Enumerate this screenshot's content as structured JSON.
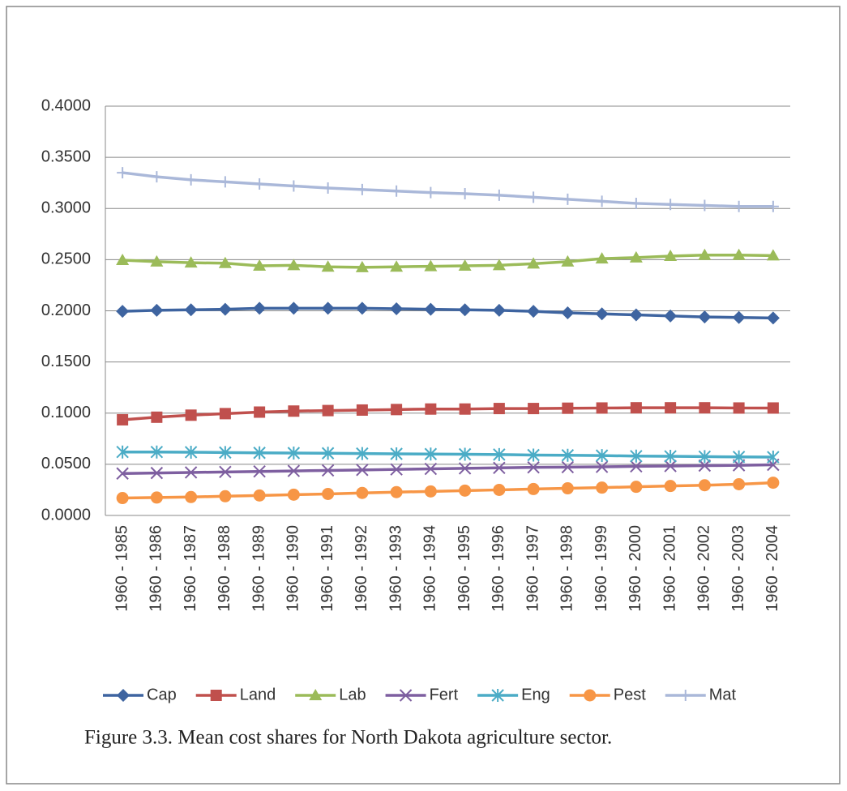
{
  "chart_data": {
    "type": "line",
    "caption": "Figure 3.3. Mean cost shares for North Dakota agriculture sector.",
    "categories": [
      "1960 - 1985",
      "1960 - 1986",
      "1960 - 1987",
      "1960 - 1988",
      "1960 - 1989",
      "1960 - 1990",
      "1960 - 1991",
      "1960 - 1992",
      "1960 - 1993",
      "1960 - 1994",
      "1960 - 1995",
      "1960 - 1996",
      "1960 - 1997",
      "1960 - 1998",
      "1960 - 1999",
      "1960 - 2000",
      "1960 - 2001",
      "1960 - 2002",
      "1960 - 2003",
      "1960 - 2004"
    ],
    "ylim": [
      0,
      0.4
    ],
    "yticks": [
      {
        "value": 0,
        "label": "0.0000"
      },
      {
        "value": 0.05,
        "label": "0.0500"
      },
      {
        "value": 0.1,
        "label": "0.1000"
      },
      {
        "value": 0.15,
        "label": "0.1500"
      },
      {
        "value": 0.2,
        "label": "0.2000"
      },
      {
        "value": 0.25,
        "label": "0.2500"
      },
      {
        "value": 0.3,
        "label": "0.3000"
      },
      {
        "value": 0.35,
        "label": "0.3500"
      },
      {
        "value": 0.4,
        "label": "0.4000"
      }
    ],
    "grid": true,
    "legend": "bottom",
    "series": [
      {
        "name": "Cap",
        "color": "#3e64a0",
        "marker": "diamond",
        "values": [
          0.1995,
          0.2005,
          0.201,
          0.2015,
          0.2025,
          0.2025,
          0.2025,
          0.2025,
          0.202,
          0.2015,
          0.201,
          0.2005,
          0.1995,
          0.198,
          0.197,
          0.196,
          0.195,
          0.194,
          0.1935,
          0.193
        ]
      },
      {
        "name": "Land",
        "color": "#c0504d",
        "marker": "square",
        "values": [
          0.0935,
          0.096,
          0.098,
          0.0995,
          0.101,
          0.102,
          0.1025,
          0.103,
          0.1035,
          0.104,
          0.104,
          0.1045,
          0.1045,
          0.1048,
          0.105,
          0.1052,
          0.1052,
          0.1052,
          0.105,
          0.105
        ]
      },
      {
        "name": "Lab",
        "color": "#9bbb59",
        "marker": "triangle",
        "values": [
          0.2495,
          0.248,
          0.247,
          0.2465,
          0.244,
          0.2445,
          0.243,
          0.2425,
          0.243,
          0.2435,
          0.244,
          0.2445,
          0.246,
          0.248,
          0.251,
          0.252,
          0.2535,
          0.2545,
          0.2545,
          0.254
        ]
      },
      {
        "name": "Fert",
        "color": "#7e5fa0",
        "marker": "x",
        "values": [
          0.041,
          0.0415,
          0.042,
          0.0425,
          0.043,
          0.0435,
          0.044,
          0.0445,
          0.045,
          0.0455,
          0.046,
          0.0465,
          0.047,
          0.0472,
          0.0475,
          0.048,
          0.0483,
          0.0487,
          0.049,
          0.0495
        ]
      },
      {
        "name": "Eng",
        "color": "#4bacc6",
        "marker": "star",
        "values": [
          0.062,
          0.062,
          0.0618,
          0.0615,
          0.0612,
          0.061,
          0.0608,
          0.0605,
          0.0602,
          0.06,
          0.0598,
          0.0595,
          0.059,
          0.0588,
          0.0585,
          0.058,
          0.0578,
          0.0575,
          0.0572,
          0.057
        ]
      },
      {
        "name": "Pest",
        "color": "#f79646",
        "marker": "circle",
        "values": [
          0.017,
          0.0175,
          0.018,
          0.0188,
          0.0195,
          0.0203,
          0.021,
          0.022,
          0.0228,
          0.0235,
          0.0243,
          0.025,
          0.0258,
          0.0265,
          0.0272,
          0.028,
          0.0288,
          0.0295,
          0.0305,
          0.032
        ]
      },
      {
        "name": "Mat",
        "color": "#aab8d9",
        "marker": "plus",
        "values": [
          0.335,
          0.331,
          0.328,
          0.326,
          0.324,
          0.322,
          0.32,
          0.3185,
          0.317,
          0.3155,
          0.3145,
          0.313,
          0.311,
          0.309,
          0.307,
          0.305,
          0.304,
          0.303,
          0.302,
          0.302
        ]
      }
    ]
  }
}
